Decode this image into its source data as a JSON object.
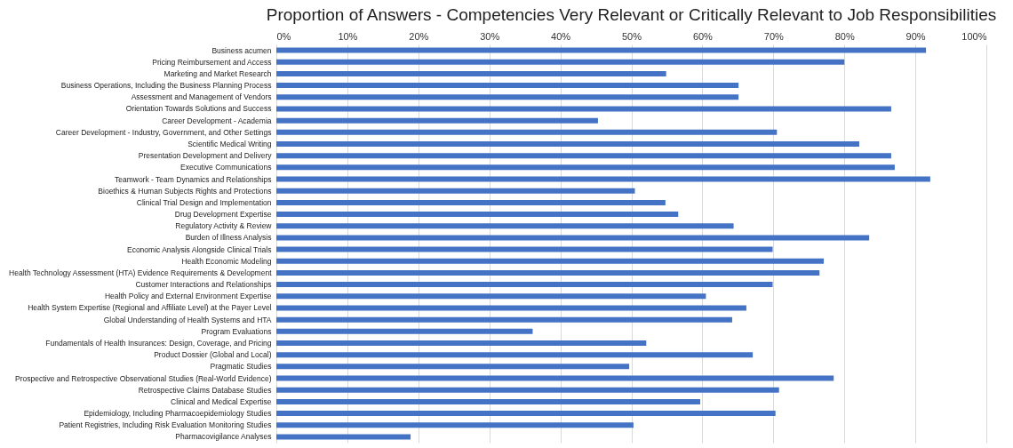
{
  "chart_data": {
    "type": "bar",
    "orientation": "horizontal",
    "title": "Proportion of Answers - Competencies Very Relevant or Critically Relevant to Job Responsibilities",
    "categories": [
      "Business acumen",
      "Pricing Reimbursement and Access ",
      "Marketing and Market Research",
      "Business Operations, Including the Business Planning Process",
      "Assessment and Management of Vendors",
      "Orientation Towards Solutions and Success",
      "Career Development - Academia",
      "Career Development - Industry, Government, and Other Settings",
      "Scientific Medical Writing",
      "Presentation Development and Delivery",
      "Executive Communications",
      "Teamwork - Team Dynamics and Relationships",
      "Bioethics & Human Subjects Rights and Protections",
      "Clinical Trial Design and Implementation",
      "Drug Development Expertise",
      "Regulatory Activity & Review",
      "Burden of Illness Analysis",
      "Economic Analysis Alongside Clinical Trials",
      "Health Economic Modeling ",
      "Health Technology Assessment (HTA) Evidence Requirements & Development ",
      "Customer Interactions and Relationships",
      "Health Policy and External Environment Expertise",
      "Health System Expertise (Regional and Affiliate Level) at the Payer Level",
      "Global Understanding of Health Systems and HTA",
      "Program Evaluations",
      "Fundamentals of Health Insurances: Design, Coverage, and Pricing",
      "Product Dossier (Global and Local)",
      "Pragmatic Studies",
      "Prospective and Retrospective Observational Studies (Real-World Evidence) ",
      "Retrospective Claims Database Studies",
      "Clinical and Medical Expertise",
      "Epidemiology, Including Pharmacoepidemiology Studies",
      "Patient Registries, Including Risk Evaluation Monitoring Studies",
      "Pharmacovigilance Analyses"
    ],
    "values": [
      91.5,
      80,
      54.9,
      65.1,
      65.1,
      86.6,
      45.3,
      70.5,
      82.1,
      86.6,
      87.1,
      92.1,
      50.5,
      54.8,
      56.6,
      64.4,
      83.5,
      69.9,
      77.1,
      76.5,
      69.9,
      60.5,
      66.2,
      64.2,
      36.1,
      52.1,
      67.1,
      49.7,
      78.5,
      70.8,
      59.7,
      70.3,
      50.3,
      18.9
    ],
    "color": "#4472c4",
    "xlim": [
      0,
      100
    ],
    "xticks": [
      {
        "value": 0,
        "label": "0%"
      },
      {
        "value": 10,
        "label": "10%"
      },
      {
        "value": 20,
        "label": "20%"
      },
      {
        "value": 30,
        "label": "30%"
      },
      {
        "value": 40,
        "label": "40%"
      },
      {
        "value": 50,
        "label": "50%"
      },
      {
        "value": 60,
        "label": "60%"
      },
      {
        "value": 70,
        "label": "70%"
      },
      {
        "value": 80,
        "label": "80%"
      },
      {
        "value": 90,
        "label": "90%"
      },
      {
        "value": 100,
        "label": "100%"
      }
    ],
    "grid": "x"
  }
}
